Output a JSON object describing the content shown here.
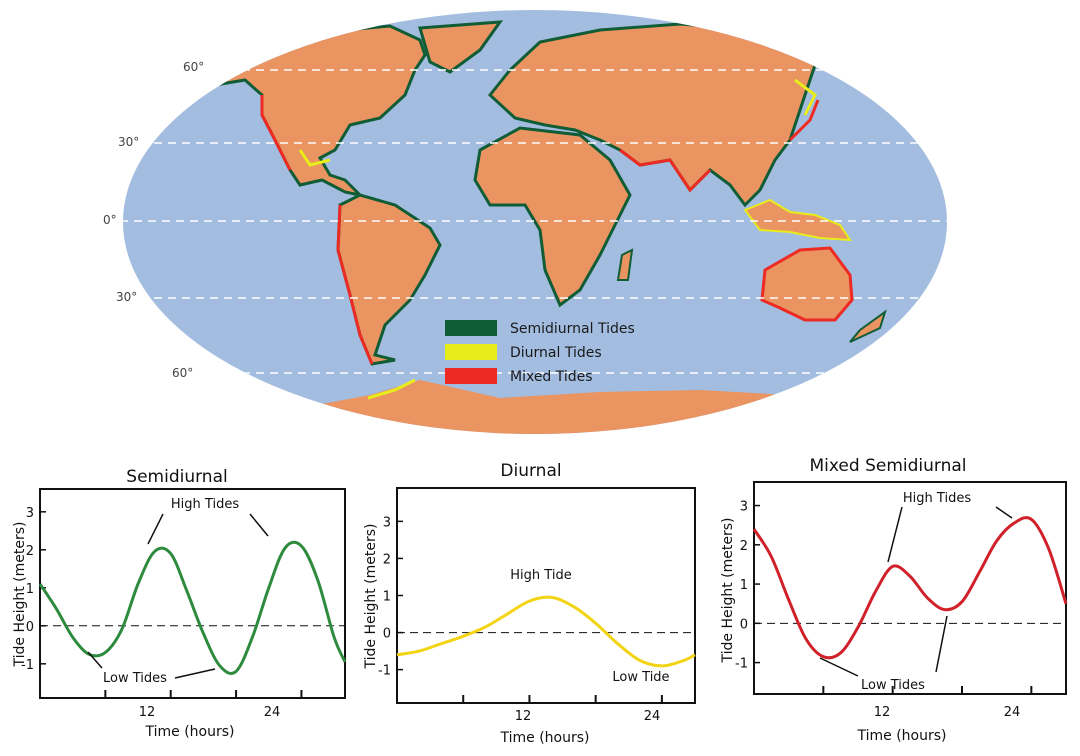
{
  "map": {
    "latitude_labels": [
      "60°",
      "30°",
      "0°",
      "30°",
      "60°"
    ],
    "legend": [
      {
        "label": "Semidiurnal Tides",
        "color": "#0f5c35"
      },
      {
        "label": "Diurnal Tides",
        "color": "#e8ec1a"
      },
      {
        "label": "Mixed Tides",
        "color": "#ee2a24"
      }
    ],
    "colors": {
      "ocean": "#a3bde0",
      "land": "#ea9462"
    }
  },
  "chart_data": [
    {
      "type": "line",
      "title": "Semidiurnal",
      "xlabel": "Time (hours)",
      "ylabel": "Tide Height (meters)",
      "x_ticks": [
        "12",
        "24"
      ],
      "y_ticks": [
        "3",
        "2",
        "1",
        "0",
        "-1"
      ],
      "xlim": [
        0,
        28
      ],
      "ylim": [
        -1.9,
        3.6
      ],
      "color": "#2e8b3e",
      "x": [
        0,
        1.5,
        3,
        4.5,
        6,
        7.5,
        9,
        10.5,
        12,
        13.5,
        15,
        16.5,
        18,
        19.5,
        21,
        22.5,
        24,
        25.5,
        27,
        28
      ],
      "y": [
        1.1,
        0.45,
        -0.3,
        -0.75,
        -0.7,
        -0.1,
        1.1,
        1.95,
        1.9,
        0.9,
        -0.2,
        -1.05,
        -1.2,
        -0.3,
        1.0,
        2.05,
        2.1,
        1.2,
        -0.3,
        -0.95
      ],
      "annotations": [
        "High Tides",
        "Low Tides"
      ]
    },
    {
      "type": "line",
      "title": "Diurnal",
      "xlabel": "Time (hours)",
      "ylabel": "Tide Height (meters)",
      "x_ticks": [
        "12",
        "24"
      ],
      "y_ticks": [
        "3",
        "2",
        "1",
        "0",
        "-1"
      ],
      "xlim": [
        0,
        27
      ],
      "ylim": [
        -1.9,
        3.9
      ],
      "color": "#f2d414",
      "x": [
        0,
        2,
        4,
        6,
        8,
        10,
        12,
        14,
        16,
        18,
        20,
        22,
        24,
        26,
        27
      ],
      "y": [
        -0.6,
        -0.5,
        -0.3,
        -0.1,
        0.15,
        0.5,
        0.85,
        0.95,
        0.7,
        0.25,
        -0.3,
        -0.75,
        -0.9,
        -0.75,
        -0.6
      ],
      "annotations": [
        "High Tide",
        "Low Tide"
      ]
    },
    {
      "type": "line",
      "title": "Mixed Semidiurnal",
      "xlabel": "Time (hours)",
      "ylabel": "Tide Height (meters)",
      "x_ticks": [
        "12",
        "24"
      ],
      "y_ticks": [
        "3",
        "2",
        "1",
        "0",
        "-1"
      ],
      "xlim": [
        0,
        27
      ],
      "ylim": [
        -1.8,
        3.6
      ],
      "color": "#d0202a",
      "x": [
        0,
        1.5,
        3,
        4.5,
        6,
        7.5,
        9,
        10.5,
        12,
        13.5,
        15,
        16.5,
        18,
        19.5,
        21,
        22.5,
        24,
        25.5,
        27
      ],
      "y": [
        2.4,
        1.7,
        0.6,
        -0.4,
        -0.85,
        -0.75,
        -0.1,
        0.8,
        1.45,
        1.2,
        0.65,
        0.35,
        0.55,
        1.3,
        2.1,
        2.55,
        2.65,
        1.9,
        0.5
      ],
      "annotations": [
        "High Tides",
        "Low Tides"
      ]
    }
  ]
}
